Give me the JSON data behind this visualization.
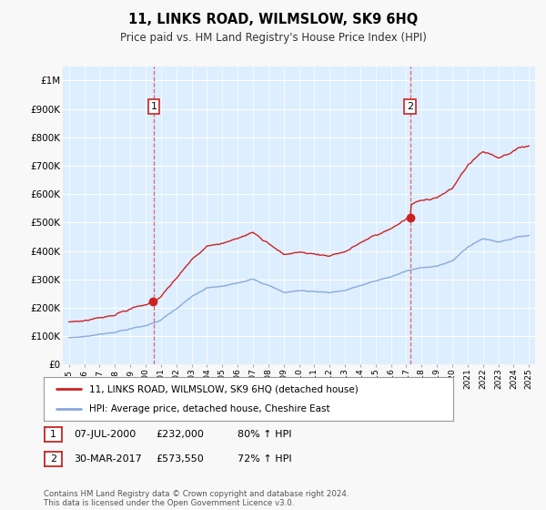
{
  "title": "11, LINKS ROAD, WILMSLOW, SK9 6HQ",
  "subtitle": "Price paid vs. HM Land Registry's House Price Index (HPI)",
  "legend_line1": "11, LINKS ROAD, WILMSLOW, SK9 6HQ (detached house)",
  "legend_line2": "HPI: Average price, detached house, Cheshire East",
  "transaction1_date": "07-JUL-2000",
  "transaction1_price": "£232,000",
  "transaction1_hpi": "80% ↑ HPI",
  "transaction2_date": "30-MAR-2017",
  "transaction2_price": "£573,550",
  "transaction2_hpi": "72% ↑ HPI",
  "footer": "Contains HM Land Registry data © Crown copyright and database right 2024.\nThis data is licensed under the Open Government Licence v3.0.",
  "hpi_color": "#88aadd",
  "price_color": "#cc2222",
  "vline_color": "#dd6666",
  "plot_bg_color": "#ddeeff",
  "fig_bg_color": "#f8f8f8",
  "grid_color": "#cccccc",
  "t1_year": 2000.54,
  "t2_year": 2017.25,
  "t1_price": 232000,
  "t2_price": 573550,
  "ylim_top": 1050000,
  "ylim_bottom": 0,
  "xmin": 1994.6,
  "xmax": 2025.4
}
